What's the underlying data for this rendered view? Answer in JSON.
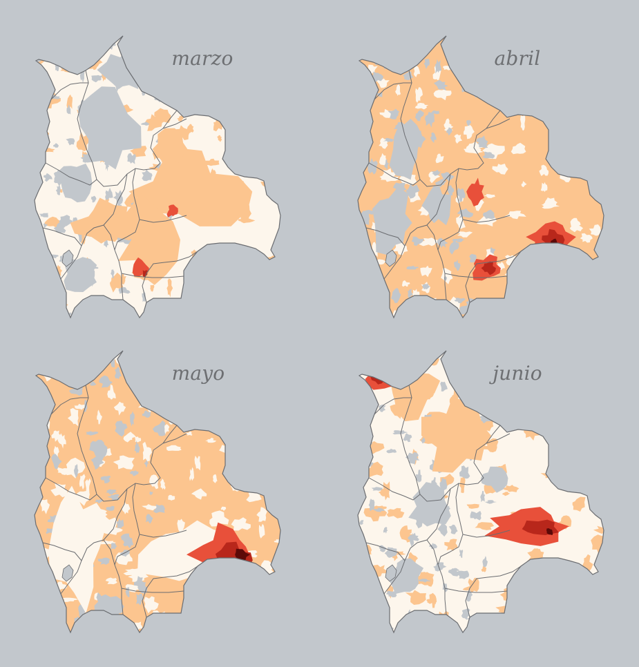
{
  "map": {
    "region": "Bolivia",
    "background_color": "#c2c7cc",
    "colors": {
      "no_data": "#c2c7cc",
      "level0": "#fdf6ec",
      "level1": "#fcc58f",
      "level2": "#e8503a",
      "level3": "#b8271b",
      "level4": "#5c0a08",
      "border": "#6a6c70"
    },
    "panels": [
      {
        "title": "marzo",
        "dominant_fill": "level0",
        "blobs": [
          {
            "level": "level1",
            "c": [
              0.62,
              0.55
            ],
            "r": [
              0.22,
              0.12
            ]
          },
          {
            "level": "level1",
            "c": [
              0.46,
              0.72
            ],
            "r": [
              0.1,
              0.13
            ]
          },
          {
            "level": "level1",
            "c": [
              0.3,
              0.66
            ],
            "r": [
              0.12,
              0.07
            ]
          },
          {
            "level": "level1",
            "c": [
              0.55,
              0.4
            ],
            "r": [
              0.07,
              0.06
            ]
          },
          {
            "level": "level2",
            "c": [
              0.56,
              0.62
            ],
            "r": [
              0.02,
              0.02
            ]
          },
          {
            "level": "level2",
            "c": [
              0.43,
              0.82
            ],
            "r": [
              0.03,
              0.03
            ]
          },
          {
            "level": "level3",
            "c": [
              0.45,
              0.84
            ],
            "r": [
              0.012,
              0.012
            ]
          }
        ],
        "gray_blobs": [
          {
            "c": [
              0.3,
              0.32
            ],
            "r": [
              0.12,
              0.14
            ]
          },
          {
            "c": [
              0.16,
              0.52
            ],
            "r": [
              0.07,
              0.08
            ]
          },
          {
            "c": [
              0.36,
              0.12
            ],
            "r": [
              0.08,
              0.07
            ]
          },
          {
            "c": [
              0.18,
              0.84
            ],
            "r": [
              0.07,
              0.06
            ]
          }
        ]
      },
      {
        "title": "abril",
        "dominant_fill": "level1",
        "blobs": [
          {
            "level": "level2",
            "c": [
              0.48,
              0.55
            ],
            "r": [
              0.03,
              0.04
            ]
          },
          {
            "level": "level2",
            "c": [
              0.78,
              0.71
            ],
            "r": [
              0.08,
              0.05
            ]
          },
          {
            "level": "level3",
            "c": [
              0.79,
              0.72
            ],
            "r": [
              0.04,
              0.03
            ]
          },
          {
            "level": "level4",
            "c": [
              0.8,
              0.73
            ],
            "r": [
              0.015,
              0.012
            ]
          },
          {
            "level": "level2",
            "c": [
              0.52,
              0.82
            ],
            "r": [
              0.06,
              0.04
            ]
          },
          {
            "level": "level3",
            "c": [
              0.53,
              0.82
            ],
            "r": [
              0.025,
              0.02
            ]
          }
        ],
        "gray_blobs": [
          {
            "c": [
              0.14,
              0.66
            ],
            "r": [
              0.08,
              0.1
            ]
          },
          {
            "c": [
              0.2,
              0.4
            ],
            "r": [
              0.06,
              0.1
            ]
          },
          {
            "c": [
              0.32,
              0.6
            ],
            "r": [
              0.05,
              0.07
            ]
          }
        ]
      },
      {
        "title": "mayo",
        "dominant_fill": "level1",
        "blobs": [
          {
            "level": "level0",
            "c": [
              0.62,
              0.72
            ],
            "r": [
              0.18,
              0.12
            ]
          },
          {
            "level": "level0",
            "c": [
              0.18,
              0.7
            ],
            "r": [
              0.1,
              0.18
            ]
          },
          {
            "level": "level2",
            "c": [
              0.78,
              0.72
            ],
            "r": [
              0.12,
              0.09
            ]
          },
          {
            "level": "level3",
            "c": [
              0.8,
              0.74
            ],
            "r": [
              0.07,
              0.05
            ]
          },
          {
            "level": "level4",
            "c": [
              0.84,
              0.72
            ],
            "r": [
              0.03,
              0.025
            ]
          },
          {
            "level": "level4",
            "c": [
              0.76,
              0.78
            ],
            "r": [
              0.02,
              0.02
            ]
          }
        ],
        "gray_blobs": [
          {
            "c": [
              0.14,
              0.6
            ],
            "r": [
              0.05,
              0.06
            ]
          },
          {
            "c": [
              0.3,
              0.9
            ],
            "r": [
              0.05,
              0.04
            ]
          }
        ]
      },
      {
        "title": "junio",
        "dominant_fill": "level0",
        "blobs": [
          {
            "level": "level1",
            "c": [
              0.42,
              0.3
            ],
            "r": [
              0.14,
              0.12
            ]
          },
          {
            "level": "level1",
            "c": [
              0.22,
              0.15
            ],
            "r": [
              0.1,
              0.08
            ]
          },
          {
            "level": "level2",
            "c": [
              0.1,
              0.1
            ],
            "r": [
              0.06,
              0.05
            ]
          },
          {
            "level": "level3",
            "c": [
              0.09,
              0.09
            ],
            "r": [
              0.03,
              0.025
            ]
          },
          {
            "level": "level2",
            "c": [
              0.7,
              0.62
            ],
            "r": [
              0.16,
              0.06
            ]
          },
          {
            "level": "level3",
            "c": [
              0.75,
              0.63
            ],
            "r": [
              0.08,
              0.03
            ]
          },
          {
            "level": "level4",
            "c": [
              0.78,
              0.64
            ],
            "r": [
              0.015,
              0.012
            ]
          }
        ],
        "gray_blobs": [
          {
            "c": [
              0.3,
              0.55
            ],
            "r": [
              0.08,
              0.07
            ]
          },
          {
            "c": [
              0.2,
              0.8
            ],
            "r": [
              0.06,
              0.06
            ]
          },
          {
            "c": [
              0.55,
              0.45
            ],
            "r": [
              0.05,
              0.04
            ]
          }
        ]
      }
    ]
  }
}
